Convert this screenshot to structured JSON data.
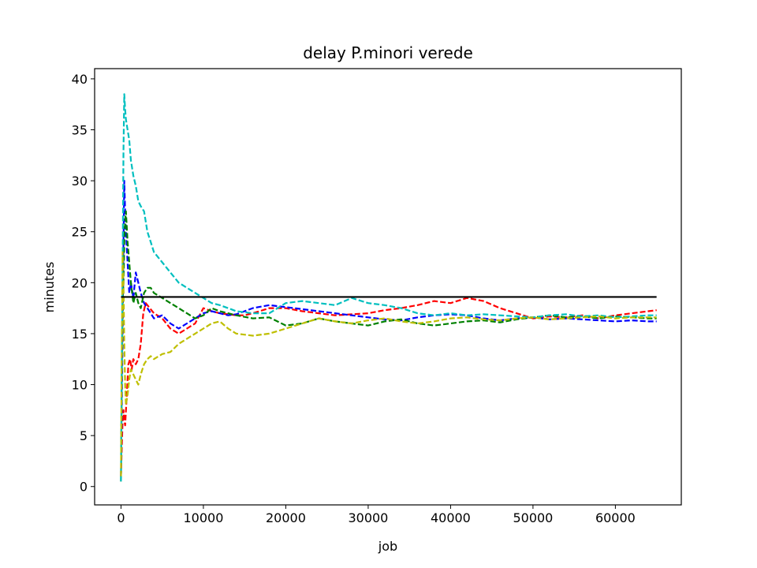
{
  "chart_data": {
    "type": "line",
    "title": "delay P.minori verede",
    "xlabel": "job",
    "ylabel": "minutes",
    "xlim": [
      -3200,
      68000
    ],
    "ylim": [
      -1.8,
      41.0
    ],
    "xticks": [
      0,
      10000,
      20000,
      30000,
      40000,
      50000,
      60000
    ],
    "yticks": [
      0,
      5,
      10,
      15,
      20,
      25,
      30,
      35,
      40
    ],
    "grid": false,
    "reference_line": {
      "y": 18.6,
      "x": [
        0,
        65000
      ],
      "color": "#000000"
    },
    "series": [
      {
        "color": "#ff0000",
        "style": "dashed",
        "x": [
          0,
          100,
          200,
          300,
          400,
          500,
          700,
          900,
          1100,
          1300,
          1500,
          1800,
          2100,
          2400,
          2700,
          3000,
          3500,
          4000,
          5000,
          6000,
          7000,
          8000,
          9000,
          10000,
          11000,
          12000,
          13000,
          14000,
          15000,
          16000,
          18000,
          20000,
          22000,
          24000,
          26000,
          28000,
          30000,
          32000,
          34000,
          36000,
          38000,
          40000,
          42000,
          44000,
          46000,
          48000,
          50000,
          52000,
          54000,
          56000,
          58000,
          60000,
          62000,
          64000,
          65000
        ],
        "y": [
          1,
          4,
          6.5,
          7.5,
          6.5,
          6,
          9,
          12,
          12.5,
          11.5,
          12.5,
          12,
          12.5,
          14,
          17,
          18,
          17.5,
          17,
          16.5,
          15.5,
          15,
          15.5,
          16,
          17.5,
          17.2,
          17,
          16.9,
          16.8,
          16.8,
          17,
          17.5,
          17.5,
          17.2,
          17,
          16.8,
          16.9,
          17,
          17.3,
          17.5,
          17.8,
          18.2,
          18,
          18.5,
          18.2,
          17.5,
          17,
          16.5,
          16.7,
          16.6,
          16.8,
          16.5,
          16.8,
          17,
          17.2,
          17.3
        ]
      },
      {
        "color": "#0000ff",
        "style": "dashed",
        "x": [
          0,
          100,
          200,
          300,
          400,
          500,
          600,
          800,
          1000,
          1200,
          1500,
          1800,
          2100,
          2400,
          2800,
          3200,
          3600,
          4000,
          5000,
          6000,
          7000,
          8000,
          9000,
          10000,
          11000,
          12000,
          13000,
          14000,
          16000,
          18000,
          20000,
          22000,
          24000,
          26000,
          28000,
          30000,
          32000,
          34000,
          36000,
          38000,
          40000,
          42000,
          44000,
          46000,
          48000,
          50000,
          52000,
          54000,
          56000,
          58000,
          60000,
          62000,
          64000,
          65000
        ],
        "y": [
          1,
          8,
          15,
          24,
          30,
          27,
          25,
          22,
          19,
          20,
          18.5,
          21,
          20,
          19,
          18,
          17.5,
          17,
          16.5,
          16.8,
          16,
          15.5,
          16,
          16.5,
          17,
          17.2,
          17,
          16.8,
          16.9,
          17.5,
          17.8,
          17.6,
          17.4,
          17.2,
          17,
          16.8,
          16.6,
          16.4,
          16.3,
          16.6,
          16.8,
          16.9,
          16.8,
          16.5,
          16.3,
          16.5,
          16.6,
          16.4,
          16.5,
          16.4,
          16.3,
          16.2,
          16.3,
          16.2,
          16.2
        ]
      },
      {
        "color": "#008000",
        "style": "dashed",
        "x": [
          0,
          100,
          200,
          300,
          400,
          500,
          600,
          800,
          1000,
          1200,
          1500,
          1800,
          2100,
          2400,
          2800,
          3200,
          3600,
          4000,
          5000,
          6000,
          7000,
          8000,
          9000,
          10000,
          11000,
          12000,
          13000,
          14000,
          16000,
          18000,
          20000,
          22000,
          24000,
          26000,
          28000,
          30000,
          32000,
          34000,
          36000,
          38000,
          40000,
          42000,
          44000,
          46000,
          48000,
          50000,
          52000,
          54000,
          56000,
          58000,
          60000,
          62000,
          64000,
          65000
        ],
        "y": [
          0.5,
          12,
          18,
          20,
          24,
          26,
          27,
          24,
          22,
          20,
          18,
          19,
          18,
          17.5,
          19,
          19.5,
          19.5,
          19,
          18.5,
          18,
          17.5,
          17,
          16.5,
          16.8,
          17.5,
          17.2,
          17,
          16.8,
          16.5,
          16.6,
          15.8,
          16,
          16.5,
          16.2,
          16,
          15.8,
          16.2,
          16.4,
          16,
          15.8,
          16,
          16.2,
          16.3,
          16.1,
          16.4,
          16.6,
          16.8,
          16.6,
          16.7,
          16.5,
          16.7,
          16.6,
          16.5,
          16.5
        ]
      },
      {
        "color": "#00bfbf",
        "style": "dashed",
        "x": [
          0,
          100,
          200,
          300,
          400,
          500,
          600,
          800,
          1000,
          1200,
          1500,
          1800,
          2100,
          2400,
          2800,
          3200,
          3600,
          4000,
          5000,
          6000,
          7000,
          8000,
          9000,
          10000,
          11000,
          12000,
          13000,
          14000,
          16000,
          18000,
          20000,
          22000,
          24000,
          26000,
          28000,
          30000,
          32000,
          34000,
          36000,
          38000,
          40000,
          42000,
          44000,
          46000,
          48000,
          50000,
          52000,
          54000,
          56000,
          58000,
          60000,
          62000,
          64000,
          65000
        ],
        "y": [
          0.5,
          10,
          22,
          33,
          38.5,
          37,
          36,
          35,
          34,
          32,
          30.5,
          29.5,
          28,
          27.5,
          27,
          25,
          24,
          23,
          22,
          21,
          20,
          19.5,
          19,
          18.5,
          18,
          17.8,
          17.5,
          17.2,
          17,
          17,
          18,
          18.2,
          18,
          17.8,
          18.5,
          18,
          17.8,
          17.5,
          17,
          16.8,
          17,
          16.8,
          16.9,
          16.8,
          16.7,
          16.6,
          16.8,
          16.9,
          16.7,
          16.8,
          16.6,
          16.7,
          16.8,
          16.8
        ]
      },
      {
        "color": "#bfbf00",
        "style": "dashed",
        "x": [
          0,
          100,
          200,
          300,
          400,
          500,
          600,
          800,
          1000,
          1200,
          1500,
          1800,
          2100,
          2400,
          2800,
          3200,
          3600,
          4000,
          5000,
          6000,
          7000,
          8000,
          9000,
          10000,
          11000,
          12000,
          13000,
          14000,
          16000,
          18000,
          20000,
          22000,
          24000,
          26000,
          28000,
          30000,
          32000,
          34000,
          36000,
          38000,
          40000,
          42000,
          44000,
          46000,
          48000,
          50000,
          52000,
          54000,
          56000,
          58000,
          60000,
          62000,
          64000,
          65000
        ],
        "y": [
          1,
          14,
          23,
          20,
          14,
          10,
          8,
          9,
          10.5,
          11.5,
          11,
          10.5,
          10,
          11,
          12,
          12.5,
          12.8,
          12.5,
          13,
          13.2,
          14,
          14.5,
          15,
          15.5,
          16,
          16.2,
          15.5,
          15,
          14.8,
          15,
          15.5,
          16,
          16.5,
          16.2,
          16,
          16.3,
          16.5,
          16.2,
          16,
          16.2,
          16.5,
          16.6,
          16.4,
          16.3,
          16.5,
          16.6,
          16.4,
          16.5,
          16.6,
          16.7,
          16.5,
          16.6,
          16.6,
          16.6
        ]
      }
    ]
  }
}
